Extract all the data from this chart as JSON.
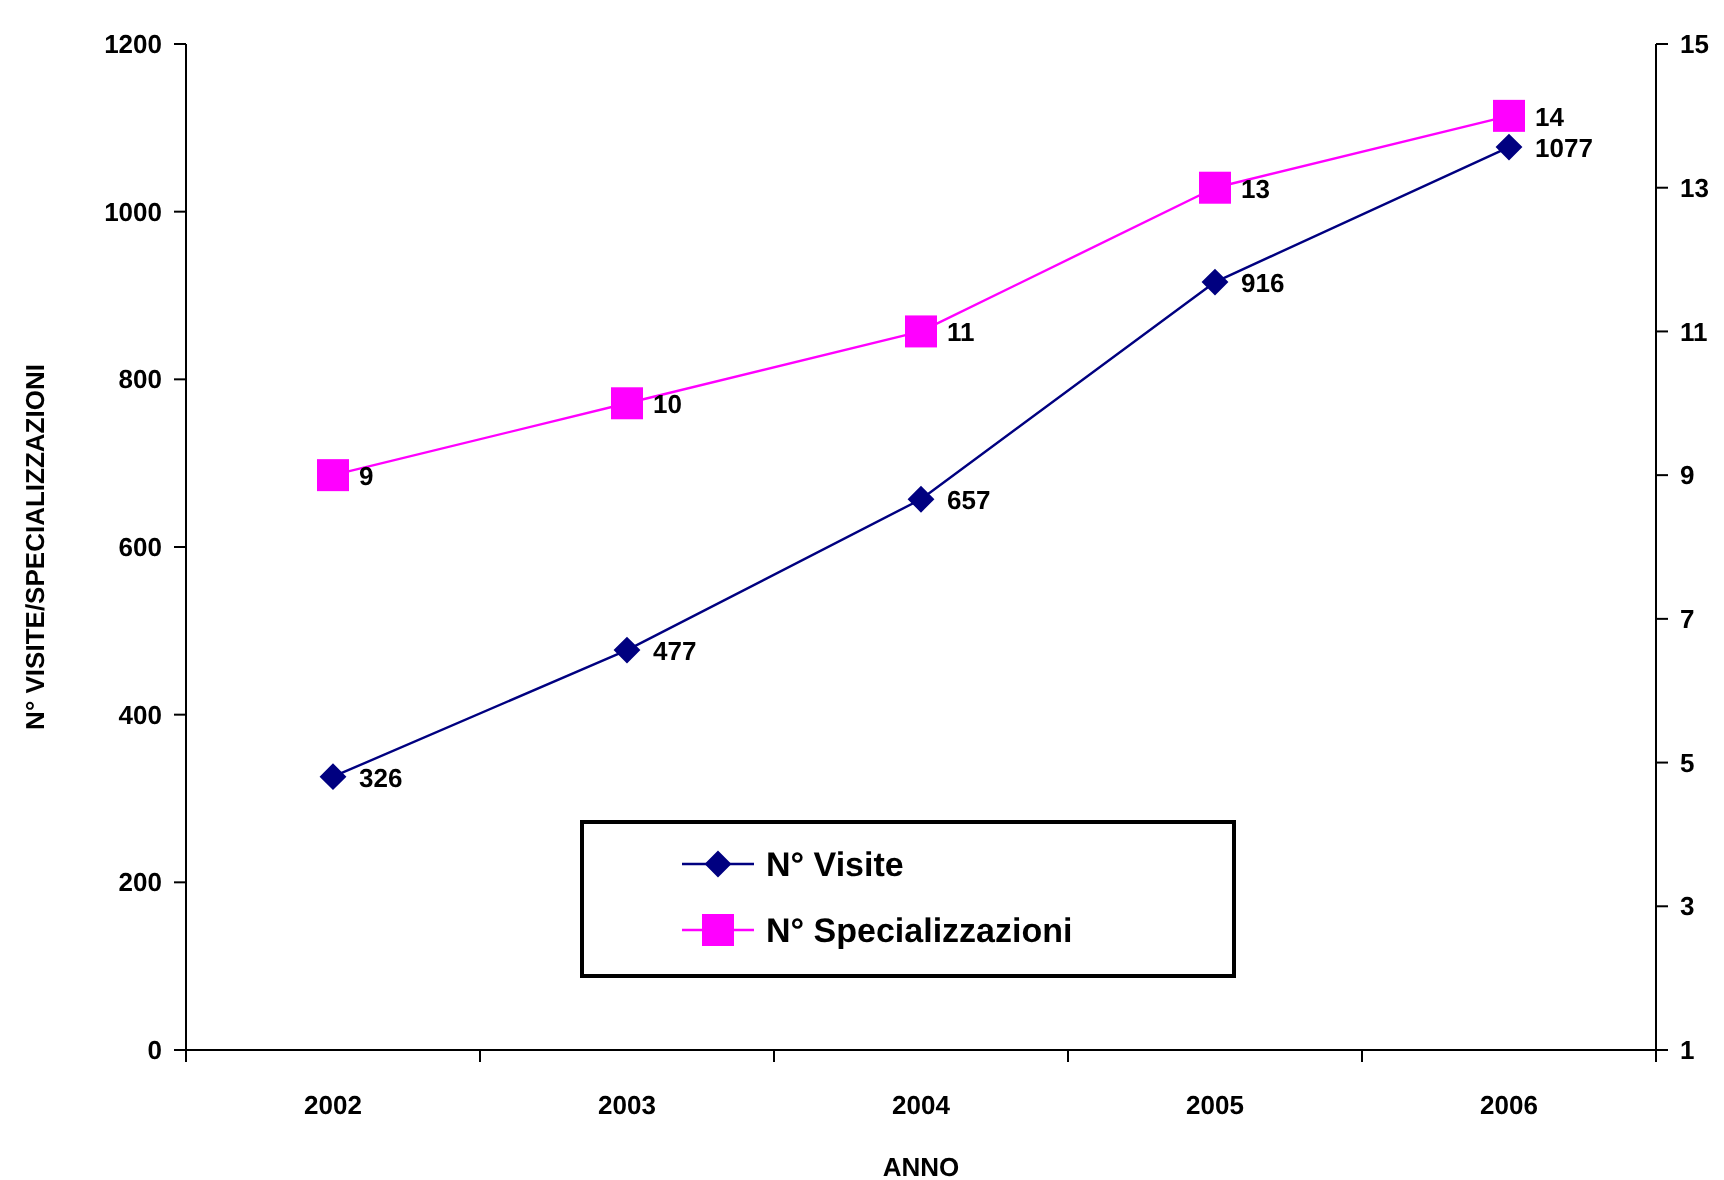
{
  "chart_data": {
    "type": "line",
    "xlabel": "ANNO",
    "ylabel": "N° VISITE/SPECIALIZZAZIONI",
    "categories": [
      "2002",
      "2003",
      "2004",
      "2005",
      "2006"
    ],
    "series": [
      {
        "name": "N° Visite",
        "color": "#000080",
        "values": [
          326,
          477,
          657,
          916,
          1077
        ],
        "marker": "diamond"
      },
      {
        "name": "N° Specializzazioni",
        "color": "#ff00ff",
        "values": [
          9,
          10,
          11,
          13,
          14
        ],
        "axis": "y2",
        "marker": "square"
      }
    ],
    "ylim": [
      0,
      1200
    ],
    "yticks": [
      0,
      200,
      400,
      600,
      800,
      1000,
      1200
    ],
    "y2lim": [
      1,
      15
    ],
    "y2ticks": [
      1,
      3,
      5,
      7,
      9,
      11,
      13,
      15
    ],
    "data_labels": true,
    "legend": "bottom",
    "grid": false
  }
}
